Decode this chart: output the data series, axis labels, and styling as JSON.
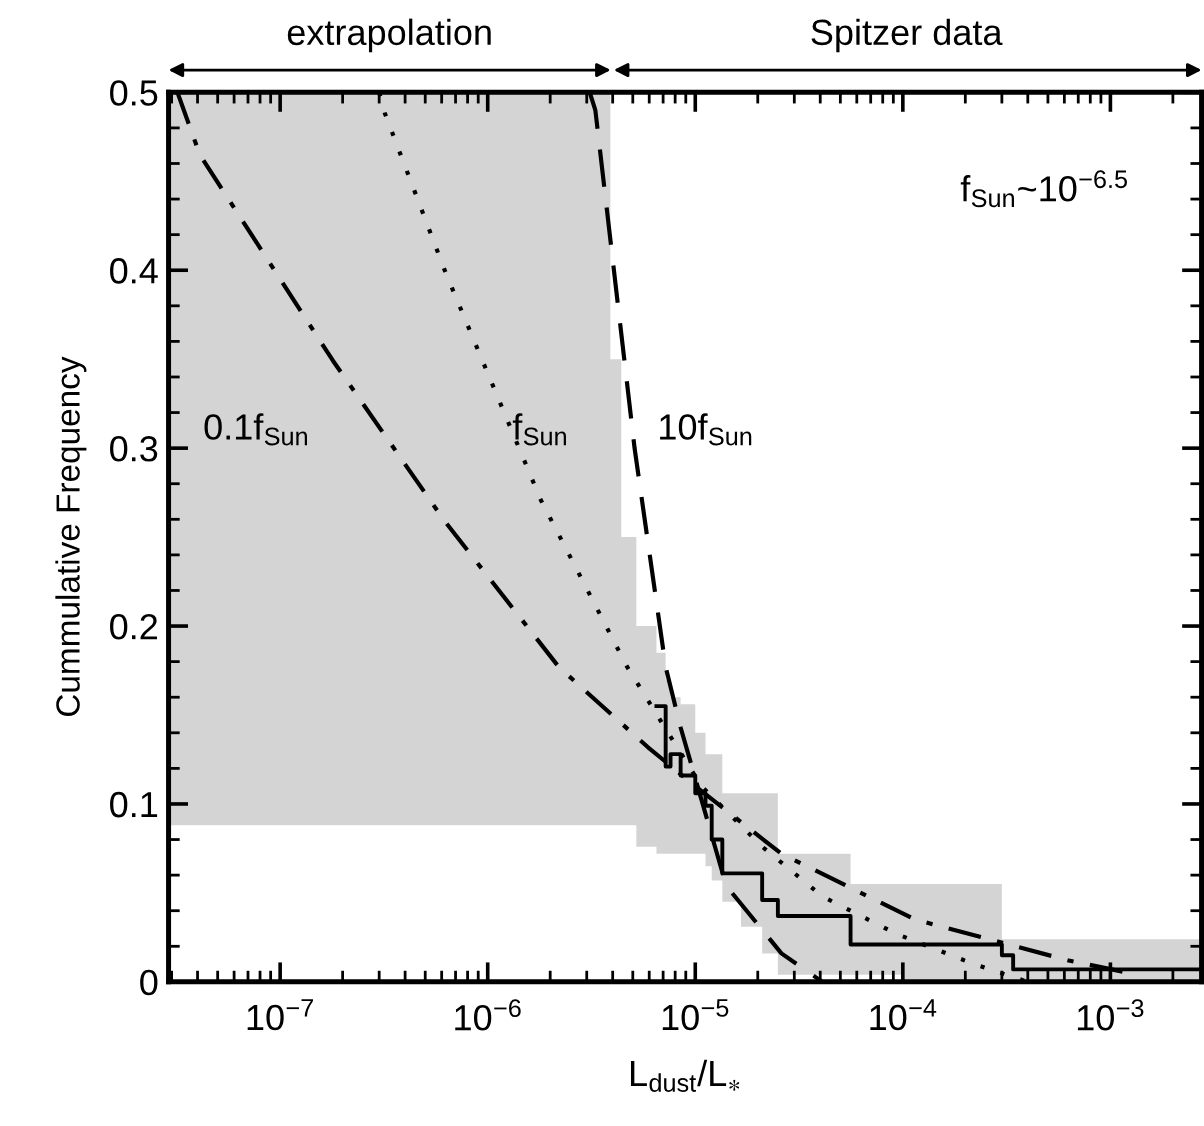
{
  "chart_data": {
    "type": "line",
    "xlabel": "L$_{dust}$/L$_{∗}$",
    "ylabel": "Cummulative Frequency",
    "log": "x",
    "xlim": [
      2.9e-08,
      0.00275
    ],
    "ylim": [
      0,
      0.5
    ],
    "xticks": [
      {
        "value": 1e-07,
        "label": "10$^{−7}$"
      },
      {
        "value": 1e-06,
        "label": "10$^{−6}$"
      },
      {
        "value": 1e-05,
        "label": "10$^{−5}$"
      },
      {
        "value": 0.0001,
        "label": "10$^{−4}$"
      },
      {
        "value": 0.001,
        "label": "10$^{−3}$"
      }
    ],
    "yticks": [
      0,
      0.1,
      0.2,
      0.3,
      0.4,
      0.5
    ],
    "grid": false,
    "legend": false,
    "series": [
      {
        "type": "step",
        "color": "#000000",
        "line_style": "solid",
        "x": [
          2.9e-08,
          3.9e-06,
          4.4e-06,
          5.2e-06,
          6.5e-06,
          7.2e-06,
          7.6e-06,
          8.5e-06,
          1e-05,
          1.12e-05,
          1.2e-05,
          1.35e-05,
          1.66e-05,
          2.1e-05,
          2.5e-05,
          5.6e-05,
          0.0001,
          0.0003,
          0.00034,
          0.00275
        ],
        "values": [
          null,
          null,
          null,
          null,
          0.155,
          0.121,
          0.128,
          0.116,
          0.106,
          0.099,
          0.08,
          0.061,
          0.061,
          0.046,
          0.037,
          0.021,
          0.021,
          0.015,
          0.007,
          0.007
        ],
        "lower": [
          0.088,
          0.088,
          0.088,
          0.076,
          0.072,
          0.072,
          0.072,
          0.072,
          0.072,
          0.065,
          0.057,
          0.045,
          0.031,
          0.016,
          0.004,
          0.004,
          0,
          0,
          0,
          0
        ],
        "upper": [
          0.5,
          0.35,
          0.25,
          0.2,
          0.185,
          0.17,
          0.16,
          0.156,
          0.14,
          0.128,
          0.128,
          0.106,
          0.106,
          0.106,
          0.072,
          0.055,
          0.055,
          0.024,
          0.024,
          0.024
        ]
      },
      {
        "color": "#000000",
        "line_style": "dashdot",
        "x": [
          3.2e-08,
          4.1e-08,
          1.8e-07,
          6.2e-07,
          2.2e-06,
          5.9e-06,
          1e-05,
          2.6e-05,
          0.000115,
          0.00063,
          0.00135
        ],
        "values": [
          0.5,
          0.465,
          0.349,
          0.259,
          0.177,
          0.132,
          0.11,
          0.072,
          0.035,
          0.012,
          0.004
        ]
      },
      {
        "color": "#000000",
        "line_style": "dotted",
        "x": [
          3e-07,
          3.2e-07,
          6.3e-07,
          1.8e-06,
          4.7e-06,
          1.07e-05,
          2.1e-05,
          4.1e-05,
          9.3e-05,
          0.00022,
          0.0004
        ],
        "values": [
          0.5,
          0.488,
          0.398,
          0.271,
          0.177,
          0.11,
          0.076,
          0.048,
          0.027,
          0.01,
          0.0
        ]
      },
      {
        "color": "#000000",
        "line_style": "dashed",
        "x": [
          3.1e-06,
          3.3e-06,
          5.1e-06,
          7.2e-06,
          8.5e-06,
          1.41e-05,
          2.6e-05,
          4.1e-05
        ],
        "values": [
          0.5,
          0.49,
          0.3,
          0.177,
          0.143,
          0.054,
          0.016,
          0.0
        ]
      }
    ],
    "annotations": [
      "extrapolation",
      "Spitzer data",
      "0.1f$_{Sun}$",
      "f$_{Sun}$",
      "10f$_{Sun}$",
      "f$_{Sun}$~10$^{−6.5}$"
    ]
  }
}
